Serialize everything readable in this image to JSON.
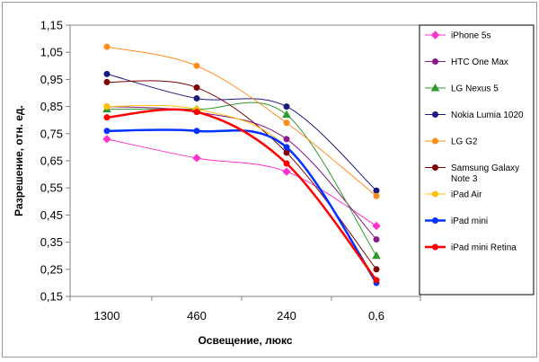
{
  "chart_data": {
    "type": "line",
    "title": "",
    "xlabel": "Освещение, люкс",
    "ylabel": "Разрешение, отн. ед.",
    "categories": [
      "1300",
      "460",
      "240",
      "0,6"
    ],
    "ylim": [
      0.15,
      1.15
    ],
    "yticks": [
      "0,15",
      "0,25",
      "0,35",
      "0,45",
      "0,55",
      "0,65",
      "0,75",
      "0,85",
      "0,95",
      "1,05",
      "1,15"
    ],
    "grid": false,
    "legend_position": "right",
    "series": [
      {
        "name": "iPhone 5s",
        "color": "#ff33cc",
        "marker": "diamond",
        "width": 1,
        "values": [
          0.73,
          0.66,
          0.61,
          0.41
        ]
      },
      {
        "name": "HTC One Max",
        "color": "#8a1a8a",
        "marker": "circle",
        "width": 1,
        "values": [
          0.85,
          0.83,
          0.73,
          0.36
        ]
      },
      {
        "name": "LG Nexus 5",
        "color": "#2e9a2e",
        "marker": "triangle",
        "width": 1,
        "values": [
          0.84,
          0.84,
          0.82,
          0.3
        ]
      },
      {
        "name": "Nokia Lumia 1020",
        "color": "#1a1a80",
        "marker": "circle",
        "width": 1,
        "values": [
          0.97,
          0.88,
          0.85,
          0.54
        ]
      },
      {
        "name": "LG G2",
        "color": "#ff8c1a",
        "marker": "circle",
        "width": 1,
        "values": [
          1.07,
          1.0,
          0.79,
          0.52
        ]
      },
      {
        "name": "Samsung Galaxy Note 3",
        "color": "#800000",
        "marker": "circle",
        "width": 1,
        "values": [
          0.94,
          0.92,
          0.68,
          0.25
        ]
      },
      {
        "name": "iPad Air",
        "color": "#ffc000",
        "marker": "circle",
        "width": 1,
        "values": [
          0.85,
          0.84,
          0.7,
          0.21
        ]
      },
      {
        "name": "iPad mini",
        "color": "#0033ff",
        "marker": "circle",
        "width": 2.5,
        "values": [
          0.76,
          0.76,
          0.7,
          0.2
        ]
      },
      {
        "name": "iPad mini Retina",
        "color": "#ff0000",
        "marker": "circle",
        "width": 2.5,
        "values": [
          0.81,
          0.83,
          0.64,
          0.21
        ]
      }
    ]
  }
}
